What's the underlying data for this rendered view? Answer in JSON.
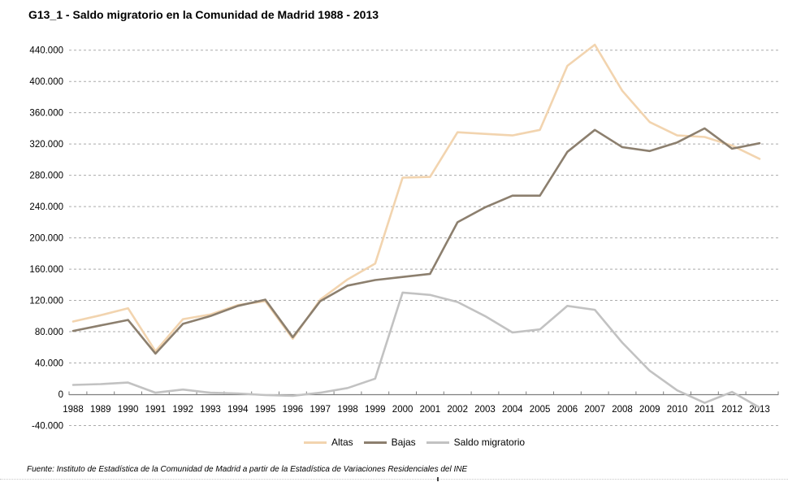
{
  "title": "G13_1 - Saldo migratorio en la Comunidad de Madrid 1988 - 2013",
  "footer": "Fuente: Instituto de Estadística de la Comunidad de Madrid a partir de la Estadística de Variaciones Residenciales del INE",
  "chart_data": {
    "type": "line",
    "x": [
      1988,
      1989,
      1990,
      1991,
      1992,
      1993,
      1994,
      1995,
      1996,
      1997,
      1998,
      1999,
      2000,
      2001,
      2002,
      2003,
      2004,
      2005,
      2006,
      2007,
      2008,
      2009,
      2010,
      2011,
      2012,
      2013
    ],
    "series": [
      {
        "name": "Altas",
        "color": "#F2D4AF",
        "values": [
          93000,
          101000,
          110000,
          55000,
          96000,
          102000,
          114000,
          119000,
          71000,
          121000,
          147000,
          167000,
          277000,
          278000,
          335000,
          333000,
          331000,
          338000,
          420000,
          447000,
          388000,
          348000,
          331000,
          329000,
          318000,
          301000
        ]
      },
      {
        "name": "Bajas",
        "color": "#8C7F6E",
        "values": [
          81000,
          88000,
          95000,
          52000,
          90000,
          100000,
          113000,
          121000,
          73000,
          119000,
          139000,
          146000,
          150000,
          154000,
          220000,
          239000,
          254000,
          254000,
          310000,
          338000,
          316000,
          311000,
          322000,
          340000,
          314000,
          321000
        ]
      },
      {
        "name": "Saldo migratorio",
        "color": "#C2C2C2",
        "values": [
          12000,
          13000,
          15000,
          2000,
          6000,
          2000,
          1000,
          -1000,
          -2000,
          2000,
          8000,
          20000,
          130000,
          127000,
          118000,
          100000,
          79000,
          83000,
          113000,
          108000,
          66000,
          30000,
          5000,
          -11000,
          3000,
          -17000
        ]
      }
    ],
    "ylim": [
      -40000,
      460000
    ],
    "ytick_step": 40000,
    "ytick_max_labeled": 440000,
    "grid": "horizontal-dashed",
    "grid_color": "#ABABAB",
    "axis_color": "#7F7F7F",
    "label_color": "#000000",
    "legend_position": "bottom-center",
    "xlabel": "",
    "ylabel": ""
  }
}
